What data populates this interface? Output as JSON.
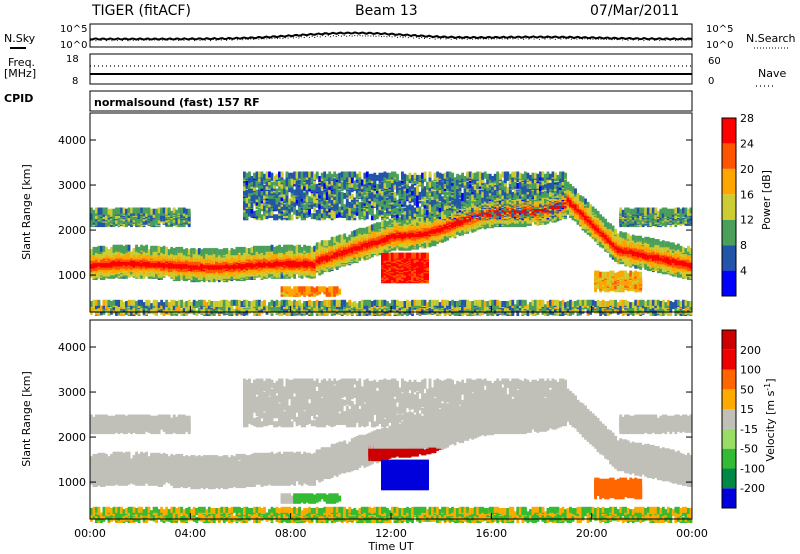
{
  "header": {
    "station": "TIGER (fitACF)",
    "beam": "Beam 13",
    "date": "07/Mar/2011"
  },
  "top_panels": {
    "left_labels": {
      "nsky": "N.Sky",
      "freq": "Freq.",
      "freq_unit": "[MHz]",
      "cpid": "CPID"
    },
    "right_labels": {
      "nsearch": "N.Search",
      "nave": "Nave"
    },
    "ticks": {
      "noise_top": "10^5",
      "noise_bottom": "10^0",
      "freq_top": "18",
      "freq_bottom": "8",
      "nave_top": "60",
      "nave_bottom": "0"
    },
    "cpid_text": "normalsound (fast) 157 RF"
  },
  "chart_data": [
    {
      "type": "heatmap",
      "title": "",
      "quantity": "Power",
      "xlabel": "Time UT",
      "ylabel": "Slant Range [km]",
      "x_ticks": [
        "00:00",
        "04:00",
        "08:00",
        "12:00",
        "16:00",
        "20:00",
        "00:00"
      ],
      "x_range_hours": [
        0,
        24
      ],
      "y_ticks": [
        1000,
        2000,
        3000,
        4000
      ],
      "ylim": [
        180,
        4600
      ],
      "colorbar": {
        "label": "Power [dB]",
        "ticks": [
          "4",
          "8",
          "12",
          "16",
          "20",
          "24",
          "28"
        ],
        "range": [
          0,
          32
        ],
        "colors": [
          "#0000ff",
          "#2255aa",
          "#4aa05a",
          "#cccc33",
          "#ffa500",
          "#ff5500",
          "#ff0000"
        ]
      }
    },
    {
      "type": "heatmap",
      "title": "",
      "quantity": "Velocity",
      "xlabel": "Time UT",
      "ylabel": "Slant Range [km]",
      "x_ticks": [
        "00:00",
        "04:00",
        "08:00",
        "12:00",
        "16:00",
        "20:00",
        "00:00"
      ],
      "x_range_hours": [
        0,
        24
      ],
      "y_ticks": [
        1000,
        2000,
        3000,
        4000
      ],
      "ylim": [
        180,
        4600
      ],
      "colorbar": {
        "label": "Velocity [m s^-1]",
        "ticks": [
          "200",
          "100",
          "50",
          "15",
          "-15",
          "-50",
          "-100",
          "-200"
        ],
        "colors": [
          "#0000dd",
          "#008844",
          "#33bb33",
          "#99dd66",
          "#c0c0b8",
          "#ffaa00",
          "#ff6600",
          "#ee0000",
          "#cc0000"
        ]
      }
    }
  ],
  "colors": {
    "background": "#ffffff",
    "axis": "#000000",
    "ground_scatter": "#c0c0b8"
  }
}
